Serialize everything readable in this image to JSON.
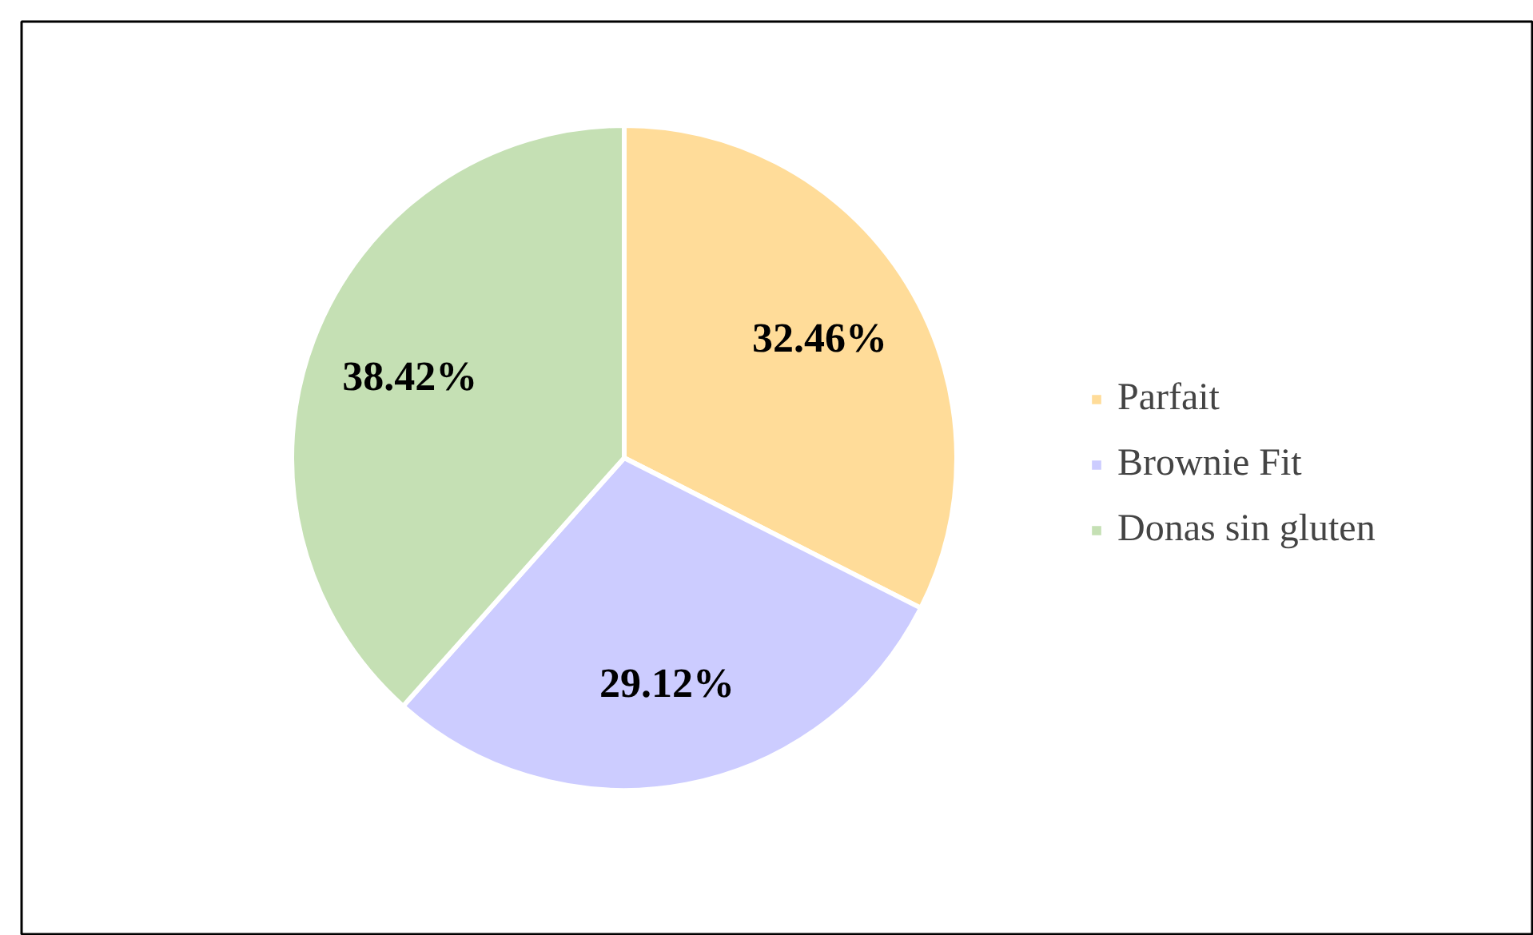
{
  "chart_data": {
    "type": "pie",
    "categories": [
      "Parfait",
      "Brownie Fit",
      "Donas sin gluten"
    ],
    "values": [
      32.46,
      29.12,
      38.42
    ],
    "colors": [
      "#ffdc99",
      "#ccccff",
      "#c5e0b4"
    ],
    "value_labels": [
      "32.46%",
      "29.12%",
      "38.42%"
    ],
    "legend": "right"
  }
}
